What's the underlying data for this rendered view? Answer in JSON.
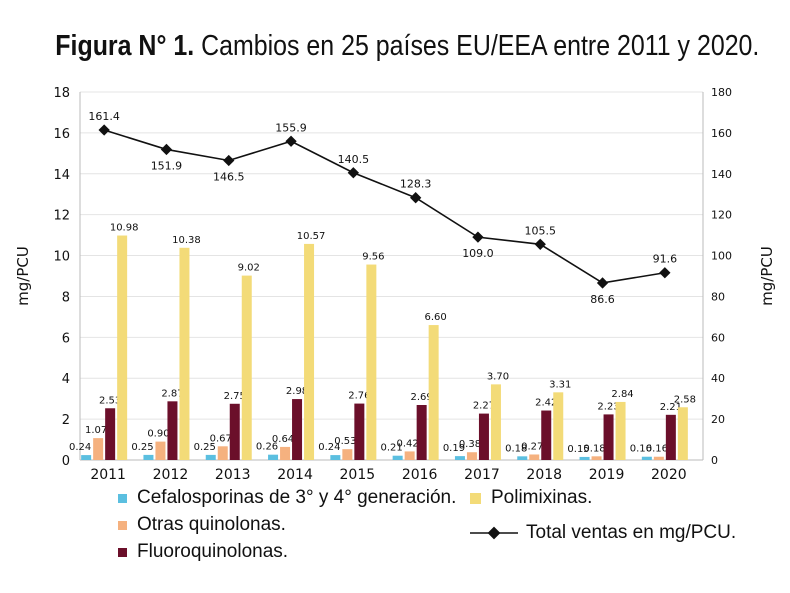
{
  "title_bold": "Figura N° 1.",
  "title_rest": "Cambios en 25 países EU/EEA entre 2011 y 2020.",
  "chart_data": {
    "type": "bar",
    "categories": [
      "2011",
      "2012",
      "2013",
      "2014",
      "2015",
      "2016",
      "2017",
      "2018",
      "2019",
      "2020"
    ],
    "ylabel": "mg/PCU",
    "y2label": "mg/PCU",
    "ylim": [
      0,
      18
    ],
    "y2lim": [
      0,
      180
    ],
    "yticks": [
      0,
      2,
      4,
      6,
      8,
      10,
      12,
      14,
      16,
      18
    ],
    "y2ticks": [
      0,
      20,
      40,
      60,
      80,
      100,
      120,
      140,
      160,
      180
    ],
    "grid": true,
    "legend_position": "bottom",
    "series": [
      {
        "name": "Cefalosporinas de 3° y 4° generación.",
        "type": "bar",
        "axis": "left",
        "color": "#5bbfe0",
        "values": [
          0.24,
          0.25,
          0.25,
          0.26,
          0.24,
          0.21,
          0.19,
          0.18,
          0.15,
          0.16
        ]
      },
      {
        "name": "Otras quinolonas.",
        "type": "bar",
        "axis": "left",
        "color": "#f5b17f",
        "values": [
          1.07,
          0.9,
          0.67,
          0.64,
          0.53,
          0.42,
          0.38,
          0.27,
          0.18,
          0.16
        ]
      },
      {
        "name": "Fluoroquinolonas.",
        "type": "bar",
        "axis": "left",
        "color": "#6b0f2a",
        "values": [
          2.53,
          2.87,
          2.75,
          2.98,
          2.76,
          2.69,
          2.27,
          2.42,
          2.23,
          2.21
        ]
      },
      {
        "name": "Polimixinas.",
        "type": "bar",
        "axis": "left",
        "color": "#f3db78",
        "values": [
          10.98,
          10.38,
          9.02,
          10.57,
          9.56,
          6.6,
          3.7,
          3.31,
          2.84,
          2.58
        ]
      },
      {
        "name": "Total ventas en mg/PCU.",
        "type": "line",
        "axis": "right",
        "color": "#111111",
        "values": [
          161.4,
          151.9,
          146.5,
          155.9,
          140.5,
          128.3,
          109.0,
          105.5,
          86.6,
          91.6
        ]
      }
    ]
  }
}
